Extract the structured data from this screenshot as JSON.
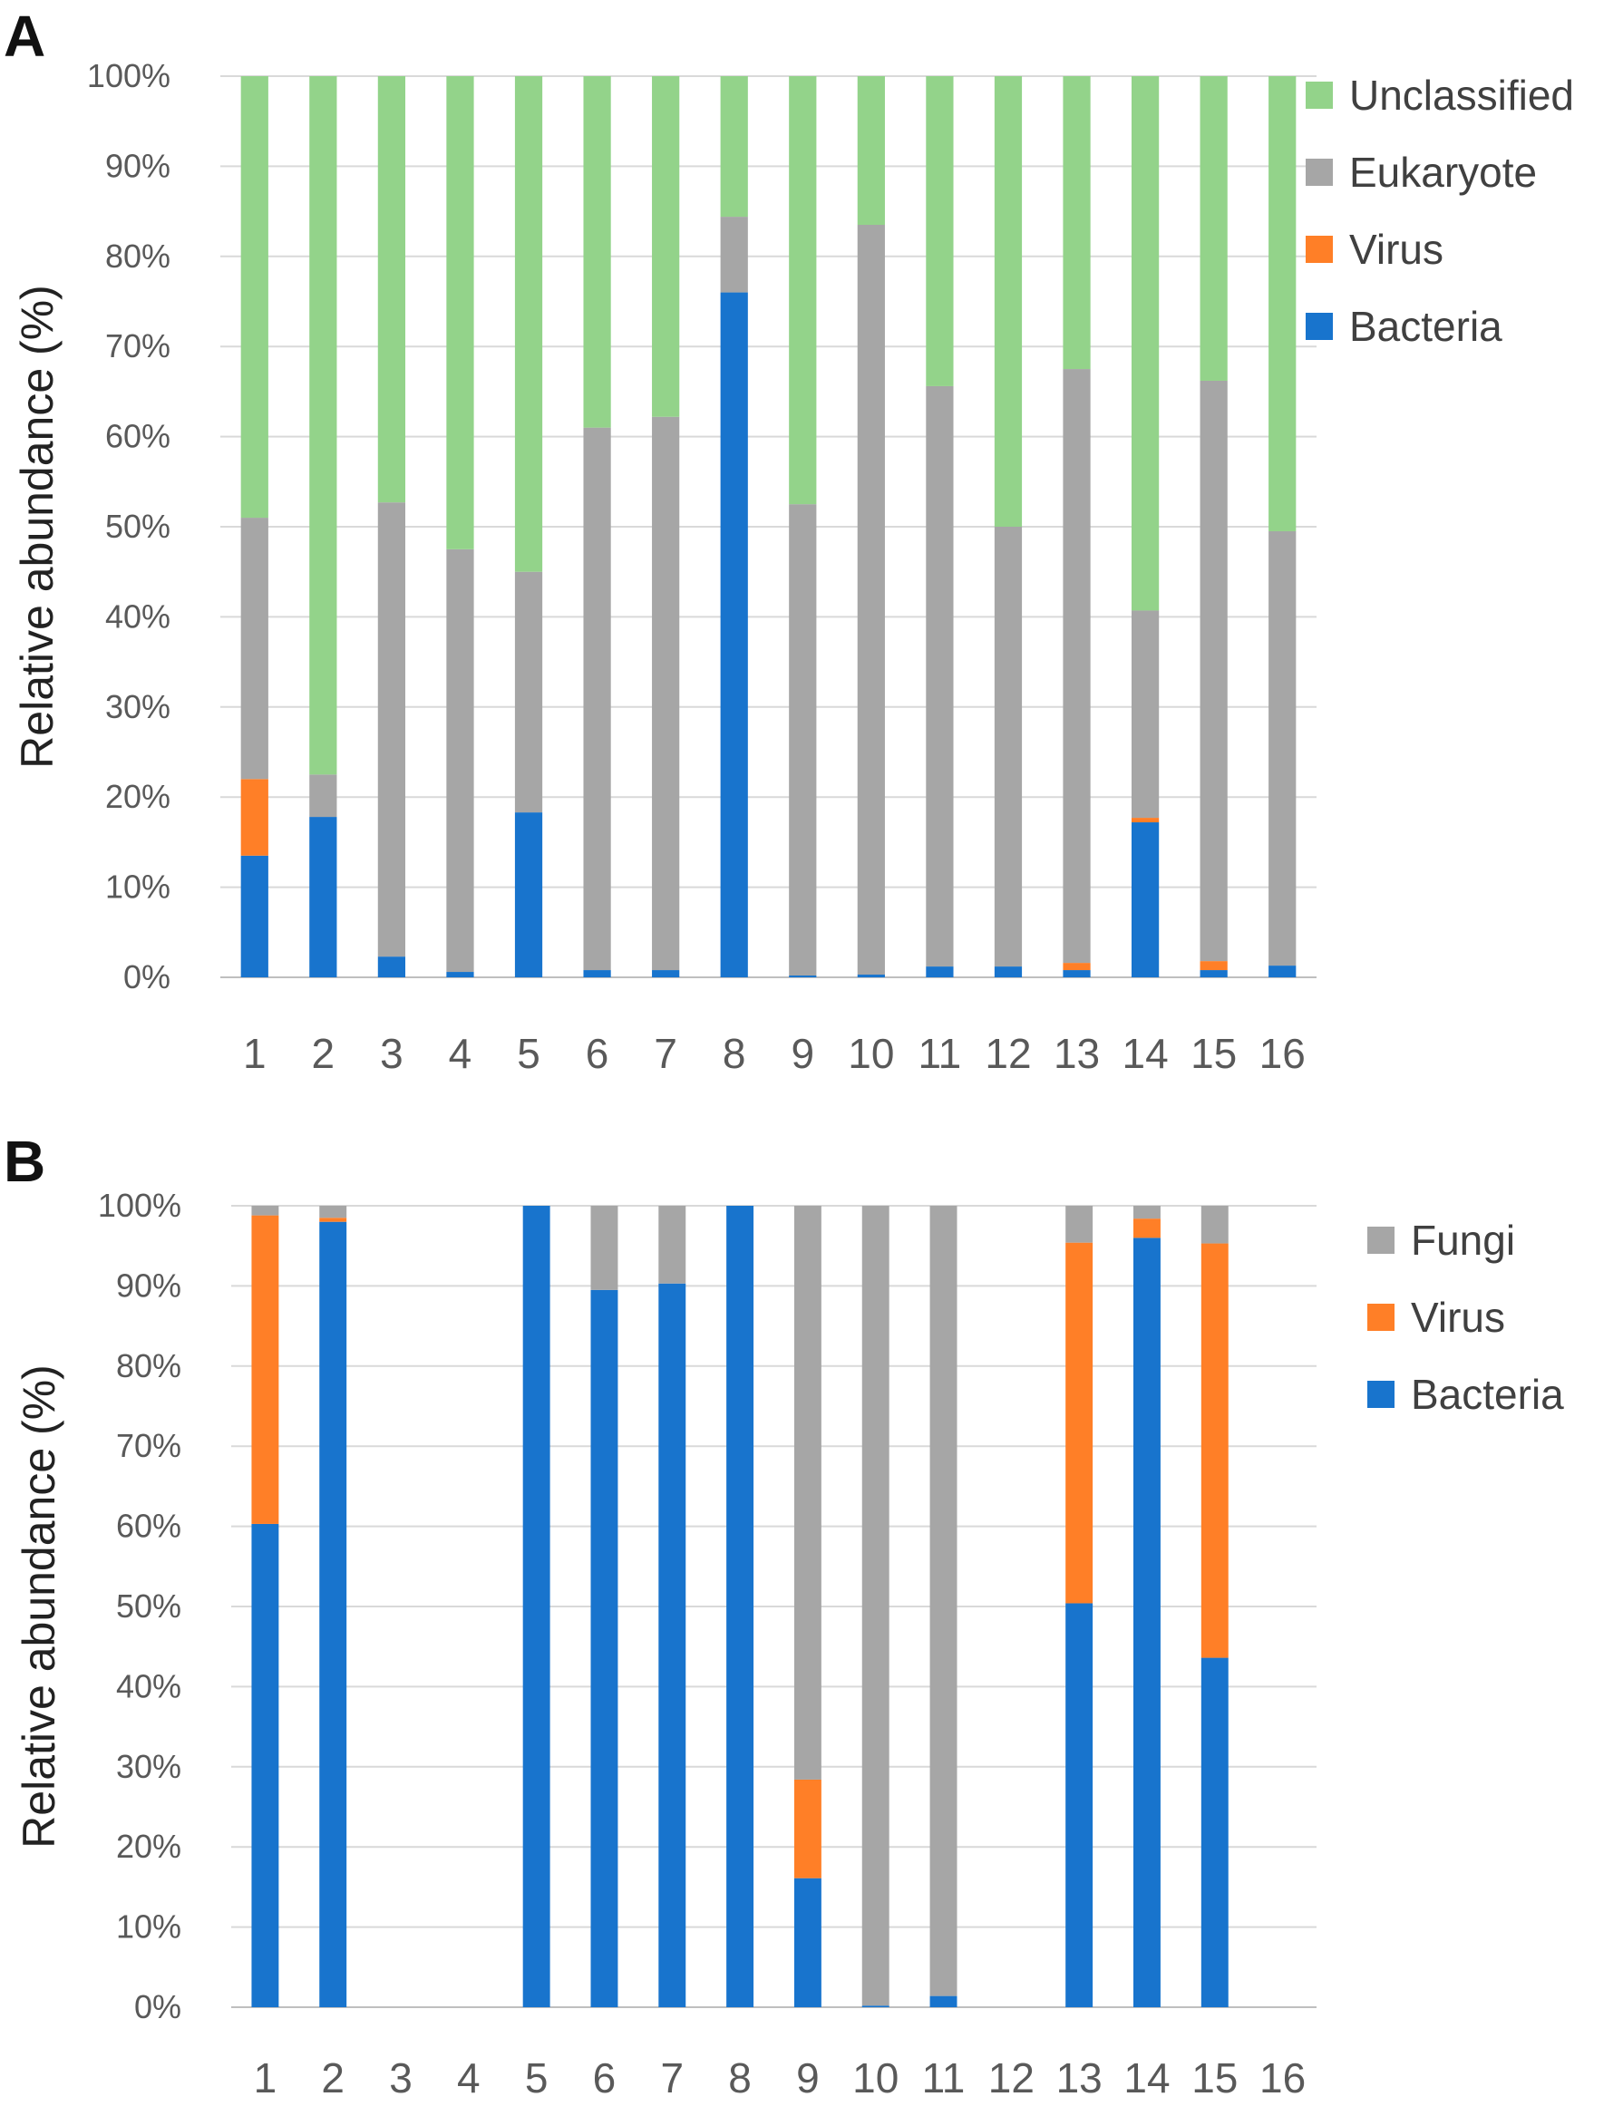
{
  "chart_data": [
    {
      "panel": "A",
      "type": "bar",
      "stacked": true,
      "ylabel": "Relative abundance (%)",
      "ylim": [
        0,
        100
      ],
      "yticks": [
        "0%",
        "10%",
        "20%",
        "30%",
        "40%",
        "50%",
        "60%",
        "70%",
        "80%",
        "90%",
        "100%"
      ],
      "categories": [
        "1",
        "2",
        "3",
        "4",
        "5",
        "6",
        "7",
        "8",
        "9",
        "10",
        "11",
        "12",
        "13",
        "14",
        "15",
        "16"
      ],
      "series": [
        {
          "name": "Bacteria",
          "color": "#1874CD",
          "values": [
            13.5,
            17.8,
            2.3,
            0.6,
            18.3,
            0.8,
            0.8,
            76,
            0.2,
            0.3,
            1.2,
            1.2,
            0.8,
            17.2,
            0.8,
            1.3
          ]
        },
        {
          "name": "Virus",
          "color": "#FF7F27",
          "values": [
            8.5,
            0,
            0,
            0,
            0,
            0,
            0,
            0,
            0,
            0,
            0,
            0,
            0.8,
            0.5,
            1.0,
            0
          ]
        },
        {
          "name": "Eukaryote",
          "color": "#A6A6A6",
          "values": [
            29,
            4.7,
            50.4,
            46.9,
            26.7,
            60.2,
            61.4,
            8.4,
            52.3,
            83.2,
            64.4,
            48.8,
            65.9,
            23.0,
            64.4,
            48.2
          ]
        },
        {
          "name": "Unclassified",
          "color": "#93D38A",
          "values": [
            49,
            77.5,
            47.3,
            52.5,
            55,
            39,
            37.8,
            15.6,
            47.5,
            16.5,
            34.4,
            50,
            32.5,
            59.3,
            33.8,
            50.5
          ]
        }
      ],
      "legend": [
        "Unclassified",
        "Eukaryote",
        "Virus",
        "Bacteria"
      ],
      "legend_position": "top-right"
    },
    {
      "panel": "B",
      "type": "bar",
      "stacked": true,
      "ylabel": "Relative abundance (%)",
      "ylim": [
        0,
        100
      ],
      "yticks": [
        "0%",
        "10%",
        "20%",
        "30%",
        "40%",
        "50%",
        "60%",
        "70%",
        "80%",
        "90%",
        "100%"
      ],
      "categories": [
        "1",
        "2",
        "3",
        "4",
        "5",
        "6",
        "7",
        "8",
        "9",
        "10",
        "11",
        "12",
        "13",
        "14",
        "15",
        "16"
      ],
      "series": [
        {
          "name": "Bacteria",
          "color": "#1874CD",
          "values": [
            60.3,
            98,
            0,
            0,
            100,
            89.5,
            90.3,
            100,
            16.1,
            0.2,
            1.4,
            0,
            50.4,
            96,
            43.6,
            0
          ]
        },
        {
          "name": "Virus",
          "color": "#FF7F27",
          "values": [
            38.5,
            0.5,
            0,
            0,
            0,
            0,
            0,
            0,
            12.3,
            0,
            0,
            0,
            45,
            2.4,
            51.7,
            0
          ]
        },
        {
          "name": "Fungi",
          "color": "#A6A6A6",
          "values": [
            1.2,
            1.5,
            0,
            0,
            0,
            10.5,
            9.7,
            0,
            71.6,
            99.8,
            98.6,
            0,
            4.6,
            1.6,
            4.7,
            0
          ]
        }
      ],
      "legend": [
        "Fungi",
        "Virus",
        "Bacteria"
      ],
      "legend_position": "top-right"
    }
  ]
}
